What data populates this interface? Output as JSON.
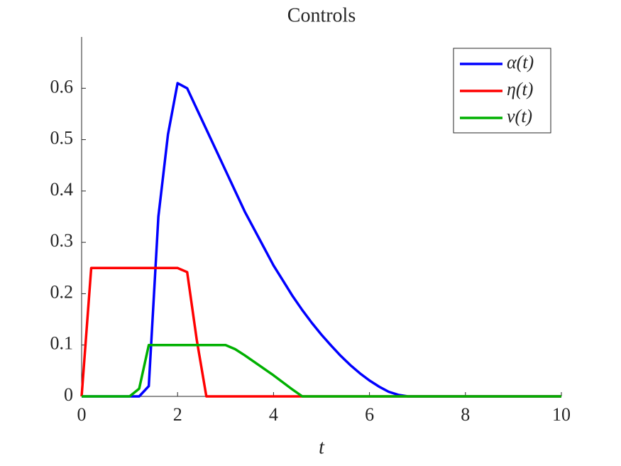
{
  "chart_data": {
    "type": "line",
    "title": "Controls",
    "x_label": "t",
    "x": [
      0,
      0.2,
      0.4,
      0.6,
      0.8,
      1,
      1.2,
      1.4,
      1.6,
      1.8,
      2,
      2.2,
      2.4,
      2.6,
      2.8,
      3,
      3.2,
      3.4,
      3.6,
      3.8,
      4,
      4.2,
      4.4,
      4.6,
      4.8,
      5,
      5.2,
      5.4,
      5.6,
      5.8,
      6,
      6.2,
      6.4,
      6.6,
      6.8,
      7,
      10
    ],
    "series": [
      {
        "name": "α(t)",
        "color": "#0000ff",
        "values": [
          0,
          0,
          0,
          0,
          0,
          0,
          0,
          0.02,
          0.35,
          0.51,
          0.61,
          0.6,
          0.56,
          0.52,
          0.48,
          0.44,
          0.4,
          0.36,
          0.325,
          0.29,
          0.255,
          0.225,
          0.195,
          0.168,
          0.143,
          0.12,
          0.099,
          0.079,
          0.061,
          0.045,
          0.031,
          0.019,
          0.009,
          0.003,
          0,
          0,
          0
        ]
      },
      {
        "name": "η(t)",
        "color": "#ff0000",
        "values": [
          0,
          0.25,
          0.25,
          0.25,
          0.25,
          0.25,
          0.25,
          0.25,
          0.25,
          0.25,
          0.25,
          0.242,
          0.11,
          0,
          0,
          0,
          0,
          0,
          0,
          0,
          0,
          0,
          0,
          0,
          0,
          0,
          0,
          0,
          0,
          0,
          0,
          0,
          0,
          0,
          0,
          0,
          0
        ]
      },
      {
        "name": "v(t)",
        "color": "#00b000",
        "values": [
          0,
          0,
          0,
          0,
          0,
          0,
          0.015,
          0.1,
          0.1,
          0.1,
          0.1,
          0.1,
          0.1,
          0.1,
          0.1,
          0.1,
          0.092,
          0.08,
          0.067,
          0.054,
          0.041,
          0.027,
          0.013,
          0,
          0,
          0,
          0,
          0,
          0,
          0,
          0,
          0,
          0,
          0,
          0,
          0,
          0
        ]
      }
    ],
    "xlim": [
      0,
      10
    ],
    "xticks": [
      0,
      2,
      4,
      6,
      8,
      10
    ],
    "ylim": [
      0,
      0.7
    ],
    "yticks": [
      0,
      0.1,
      0.2,
      0.3,
      0.4,
      0.5,
      0.6
    ],
    "legend": "top-right",
    "grid": false
  }
}
